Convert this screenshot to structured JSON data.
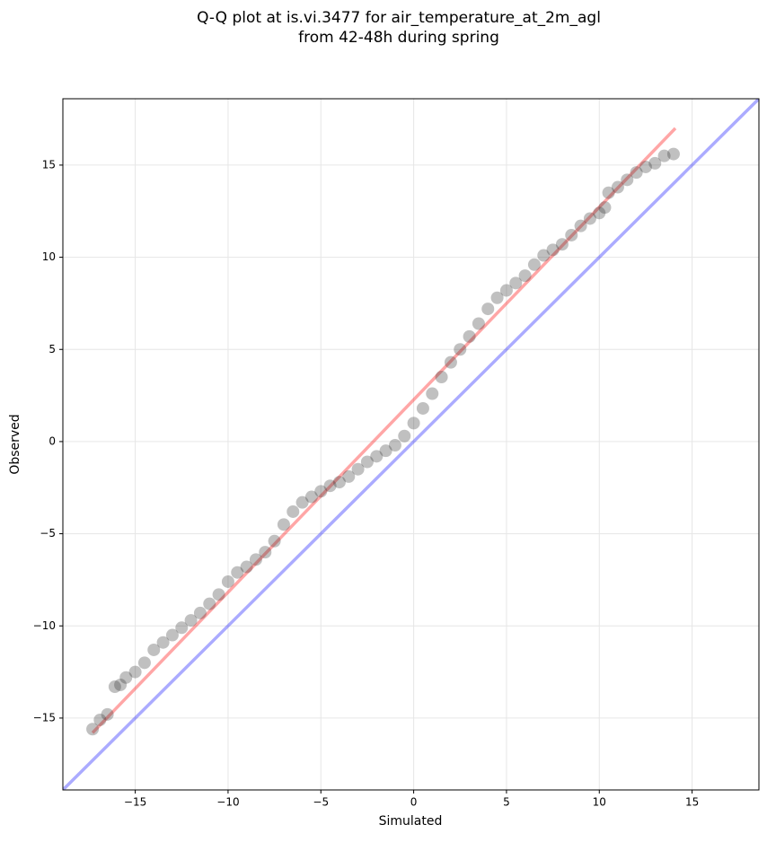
{
  "chart_data": {
    "type": "scatter",
    "title": [
      "Q-Q plot at is.vi.3477 for air_temperature_at_2m_agl",
      "from 42-48h during spring"
    ],
    "xlabel": "Simulated",
    "ylabel": "Observed",
    "xlim": [
      -18.9,
      18.6
    ],
    "ylim": [
      -18.9,
      18.6
    ],
    "xticks": [
      {
        "value": -15,
        "label": "−15"
      },
      {
        "value": -10,
        "label": "−10"
      },
      {
        "value": -5,
        "label": "−5"
      },
      0,
      5,
      10,
      15
    ],
    "yticks": [
      {
        "value": -15,
        "label": "−15"
      },
      {
        "value": -10,
        "label": "−10"
      },
      {
        "value": -5,
        "label": "−5"
      },
      0,
      5,
      10,
      15
    ],
    "grid": true,
    "series": [
      {
        "color": "#303030",
        "alpha": 0.3,
        "x": [
          -17.3,
          -16.9,
          -16.5,
          -16.1,
          -15.8,
          -15.5,
          -15.0,
          -14.5,
          -14.0,
          -13.5,
          -13.0,
          -12.5,
          -12.0,
          -11.5,
          -11.0,
          -10.5,
          -10.0,
          -9.5,
          -9.0,
          -8.5,
          -8.0,
          -7.5,
          -7.0,
          -6.5,
          -6.0,
          -5.5,
          -5.0,
          -4.5,
          -4.0,
          -3.5,
          -3.0,
          -2.5,
          -2.0,
          -1.5,
          -1.0,
          -0.5,
          0,
          0.5,
          1.0,
          1.5,
          2.0,
          2.5,
          3.0,
          3.5,
          4.0,
          4.5,
          5.0,
          5.5,
          6.0,
          6.5,
          7.0,
          7.5,
          8.0,
          8.5,
          9.0,
          9.5,
          10.0,
          10.3,
          10.5,
          11.0,
          11.5,
          12.0,
          12.5,
          13.0,
          13.5,
          14.0
        ],
        "y": [
          -15.6,
          -15.1,
          -14.8,
          -13.3,
          -13.2,
          -12.8,
          -12.5,
          -12.0,
          -11.3,
          -10.9,
          -10.5,
          -10.1,
          -9.7,
          -9.3,
          -8.8,
          -8.3,
          -7.6,
          -7.1,
          -6.8,
          -6.4,
          -6.0,
          -5.4,
          -4.5,
          -3.8,
          -3.3,
          -3.0,
          -2.7,
          -2.4,
          -2.2,
          -1.9,
          -1.5,
          -1.1,
          -0.8,
          -0.5,
          -0.2,
          0.3,
          1.0,
          1.8,
          2.6,
          3.5,
          4.3,
          5.0,
          5.7,
          6.4,
          7.2,
          7.8,
          8.2,
          8.6,
          9.0,
          9.6,
          10.1,
          10.4,
          10.7,
          11.2,
          11.7,
          12.1,
          12.4,
          12.7,
          13.5,
          13.8,
          14.2,
          14.6,
          14.9,
          15.1,
          15.5,
          15.6
        ]
      }
    ],
    "lines": [
      {
        "color": "#ff0000",
        "alpha": 0.35,
        "x": [
          -17.3,
          14.1
        ],
        "y": [
          -15.8,
          17.0
        ]
      },
      {
        "color": "#0000ff",
        "alpha": 0.33,
        "x": [
          -18.9,
          18.6
        ],
        "y": [
          -18.9,
          18.6
        ]
      }
    ]
  }
}
